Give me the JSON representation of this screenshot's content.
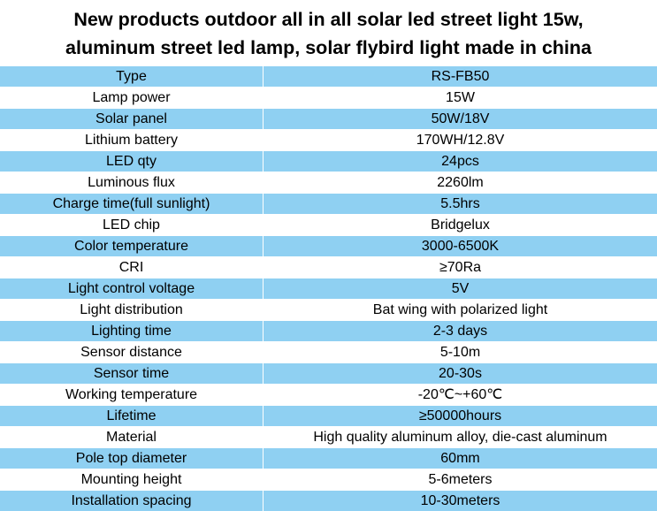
{
  "title": {
    "line1": "New products outdoor all in all solar led street light 15w,",
    "line2": "aluminum street led lamp, solar flybird light made in china"
  },
  "colors": {
    "row_highlight": "#8fd0f2",
    "row_plain": "#ffffff"
  },
  "specs": [
    {
      "key": "Type",
      "value": "RS-FB50"
    },
    {
      "key": "Lamp power",
      "value": "15W"
    },
    {
      "key": "Solar panel",
      "value": "50W/18V"
    },
    {
      "key": "Lithium battery",
      "value": "170WH/12.8V"
    },
    {
      "key": "LED qty",
      "value": "24pcs"
    },
    {
      "key": "Luminous flux",
      "value": "2260lm"
    },
    {
      "key": "Charge time(full sunlight)",
      "value": "5.5hrs"
    },
    {
      "key": "LED chip",
      "value": "Bridgelux"
    },
    {
      "key": "Color temperature",
      "value": "3000-6500K"
    },
    {
      "key": "CRI",
      "value": "≥70Ra"
    },
    {
      "key": "Light control voltage",
      "value": "5V"
    },
    {
      "key": "Light distribution",
      "value": "Bat wing with polarized light"
    },
    {
      "key": "Lighting time",
      "value": "2-3 days"
    },
    {
      "key": "Sensor distance",
      "value": "5-10m"
    },
    {
      "key": "Sensor time",
      "value": "20-30s"
    },
    {
      "key": "Working temperature",
      "value": "-20℃~+60℃"
    },
    {
      "key": "Lifetime",
      "value": "≥50000hours"
    },
    {
      "key": "Material",
      "value": "High quality aluminum alloy, die-cast aluminum"
    },
    {
      "key": "Pole top diameter",
      "value": "60mm"
    },
    {
      "key": "Mounting height",
      "value": "5-6meters"
    },
    {
      "key": "Installation spacing",
      "value": "10-30meters"
    }
  ]
}
